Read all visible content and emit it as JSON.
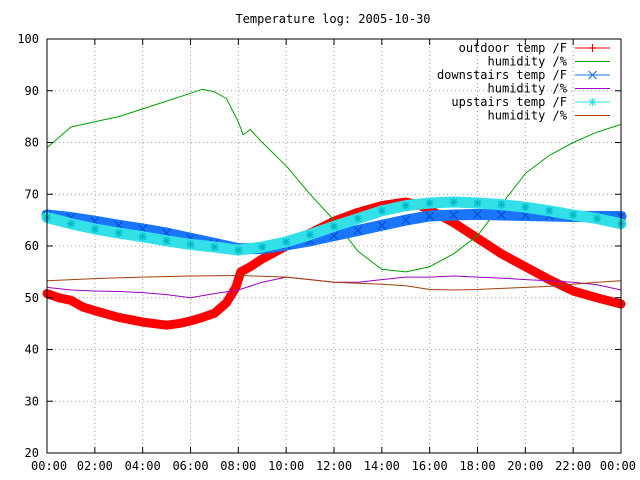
{
  "chart_data": {
    "type": "line",
    "title": "Temperature log: 2005-10-30",
    "xlabel": "",
    "ylabel": "",
    "ylim": [
      20,
      100
    ],
    "xlim": [
      0,
      24
    ],
    "grid": true,
    "legend_position": "top-right",
    "y_ticks": [
      "20",
      "30",
      "40",
      "50",
      "60",
      "70",
      "80",
      "90",
      "100"
    ],
    "x_ticks": [
      "00:00",
      "02:00",
      "04:00",
      "06:00",
      "08:00",
      "10:00",
      "12:00",
      "14:00",
      "16:00",
      "18:00",
      "20:00",
      "22:00",
      "00:00"
    ],
    "series": [
      {
        "name": "outdoor temp /F",
        "color": "#ff0000",
        "marker": "plus",
        "x": [
          0,
          0.5,
          1,
          1.5,
          2,
          3,
          4,
          4.5,
          5,
          5.5,
          6,
          6.5,
          7,
          7.5,
          7.9,
          8.1,
          8.5,
          9,
          10,
          11,
          12,
          13,
          14,
          15,
          15.5,
          16,
          17,
          18,
          19,
          20,
          21,
          22,
          23,
          24
        ],
        "y": [
          50.8,
          50,
          49.5,
          48.2,
          47.5,
          46.2,
          45.3,
          45,
          44.7,
          45,
          45.5,
          46.2,
          47,
          49,
          52,
          55,
          56,
          57.5,
          60,
          62.5,
          64.8,
          66.5,
          67.8,
          68.5,
          68,
          67,
          64.5,
          61.5,
          58.5,
          56,
          53.5,
          51.3,
          50,
          48.8
        ]
      },
      {
        "name": "humidity /%",
        "color": "#00a000",
        "marker": "none",
        "x": [
          0,
          1,
          2,
          3,
          4,
          5,
          6,
          6.5,
          7,
          7.5,
          8,
          8.2,
          8.5,
          9,
          10,
          11,
          12,
          13,
          14,
          15,
          16,
          17,
          18,
          19,
          20,
          21,
          22,
          23,
          24
        ],
        "y": [
          79,
          83,
          84,
          85,
          86.5,
          88,
          89.5,
          90.3,
          89.8,
          88.5,
          84,
          81.5,
          82.5,
          80,
          75.5,
          70,
          65,
          59,
          55.5,
          55,
          56,
          58.5,
          62,
          68,
          74,
          77.5,
          80,
          82,
          83.5
        ]
      },
      {
        "name": "downstairs temp /F",
        "color": "#1a75ff",
        "marker": "x",
        "x": [
          0,
          1,
          2,
          3,
          4,
          5,
          6,
          7,
          8,
          9,
          10,
          11,
          12,
          13,
          14,
          15,
          16,
          17,
          18,
          19,
          20,
          21,
          22,
          23,
          24
        ],
        "y": [
          66,
          65.5,
          64.8,
          64,
          63.3,
          62.5,
          61.5,
          60.5,
          59.5,
          59.5,
          60.2,
          61,
          62,
          63,
          64,
          65,
          65.8,
          66,
          66.1,
          66,
          65.9,
          65.8,
          65.7,
          65.7,
          65.7
        ]
      },
      {
        "name": "humidity /%",
        "color": "#a000c0",
        "marker": "none",
        "x": [
          0,
          1,
          2,
          3,
          4,
          5,
          6,
          7,
          8,
          9,
          10,
          11,
          12,
          13,
          14,
          15,
          16,
          17,
          18,
          19,
          20,
          21,
          22,
          23,
          24
        ],
        "y": [
          52,
          51.5,
          51.3,
          51.2,
          51,
          50.6,
          50,
          50.8,
          51.5,
          53,
          54,
          53.5,
          53,
          53,
          53.5,
          54,
          54,
          54.2,
          54,
          53.8,
          53.5,
          53.3,
          53,
          52.5,
          51.5
        ]
      },
      {
        "name": "upstairs temp /F",
        "color": "#33e0e8",
        "marker": "star",
        "x": [
          0,
          1,
          2,
          3,
          4,
          5,
          6,
          7,
          8,
          9,
          10,
          11,
          12,
          13,
          14,
          15,
          16,
          17,
          18,
          19,
          20,
          21,
          22,
          23,
          24
        ],
        "y": [
          65.5,
          64.3,
          63.3,
          62.5,
          61.8,
          61,
          60.3,
          59.8,
          59.2,
          59.8,
          60.8,
          62.2,
          63.8,
          65.3,
          66.8,
          67.8,
          68.3,
          68.5,
          68.3,
          68,
          67.5,
          66.8,
          66,
          65.3,
          64.3
        ]
      },
      {
        "name": "humidity /%",
        "color": "#a0400a",
        "marker": "none",
        "x": [
          0,
          2,
          4,
          6,
          8,
          10,
          11,
          12,
          13,
          14,
          15,
          16,
          17,
          18,
          19,
          20,
          21,
          22,
          23,
          24
        ],
        "y": [
          53.3,
          53.7,
          54,
          54.2,
          54.3,
          54,
          53.5,
          53,
          52.8,
          52.6,
          52.3,
          51.6,
          51.5,
          51.6,
          51.8,
          52,
          52.2,
          52.6,
          53,
          53.3
        ]
      }
    ]
  }
}
